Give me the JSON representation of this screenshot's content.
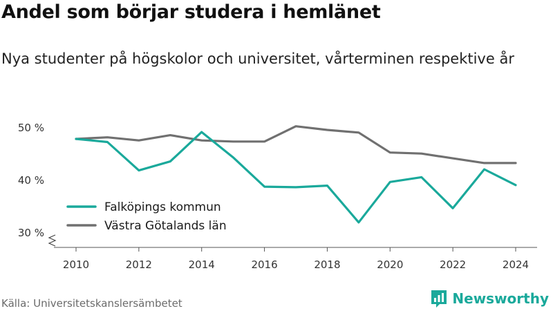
{
  "header": {
    "title": "Andel som börjar studera i hemlänet",
    "subtitle": "Nya studenter på högskolor och universitet, vårterminen respektive år"
  },
  "footer": {
    "source": "Källa: Universitetskanslersämbetet",
    "brand": "Newsworthy",
    "brand_icon": "bar-chart-logo-icon"
  },
  "colors": {
    "series_1": "#1aa99b",
    "series_2": "#707070",
    "axis": "#555555",
    "brand": "#1aa99b"
  },
  "chart_data": {
    "type": "line",
    "title": "Andel som börjar studera i hemlänet",
    "subtitle": "Nya studenter på högskolor och universitet, vårterminen respektive år",
    "x": [
      2010,
      2011,
      2012,
      2013,
      2014,
      2015,
      2016,
      2017,
      2018,
      2019,
      2020,
      2021,
      2022,
      2023,
      2024
    ],
    "xticks": [
      "2010",
      "2012",
      "2014",
      "2016",
      "2018",
      "2020",
      "2022",
      "2024"
    ],
    "yticks": [
      "30 %",
      "40 %",
      "50 %"
    ],
    "ylim": [
      28,
      53
    ],
    "y_axis_break": true,
    "grid": false,
    "legend_position": "lower-left",
    "series": [
      {
        "name": "Falköpings kommun",
        "color": "#1aa99b",
        "values": [
          47.9,
          47.3,
          41.9,
          43.6,
          49.2,
          44.4,
          38.8,
          38.7,
          39.0,
          32.0,
          39.7,
          40.6,
          34.7,
          42.1,
          39.1
        ]
      },
      {
        "name": "Västra Götalands län",
        "color": "#707070",
        "values": [
          47.9,
          48.2,
          47.6,
          48.6,
          47.6,
          47.4,
          47.4,
          50.3,
          49.6,
          49.1,
          45.3,
          45.1,
          44.2,
          43.3,
          43.3
        ]
      }
    ]
  }
}
